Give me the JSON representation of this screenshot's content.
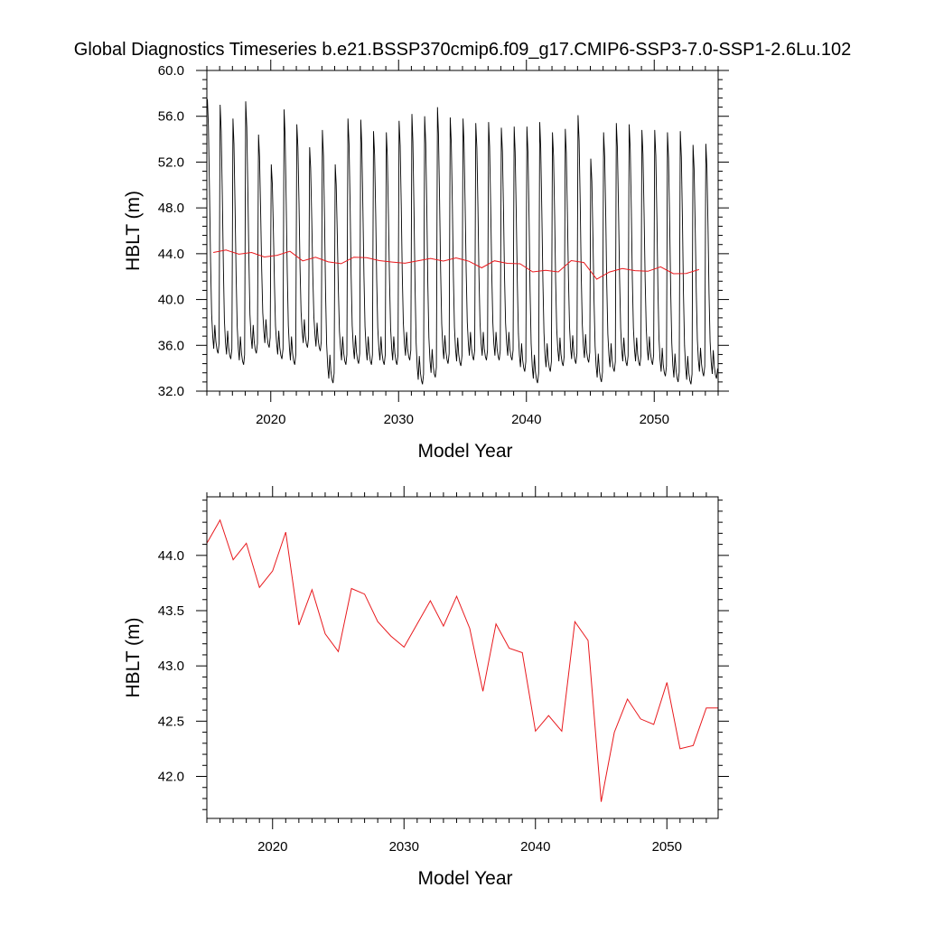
{
  "title": "Global Diagnostics Timeseries b.e21.BSSP370cmip6.f09_g17.CMIP6-SSP3-7.0-SSP1-2.6Lu.102",
  "colors": {
    "monthly": "#000000",
    "annual": "#e8191d",
    "axis": "#000000"
  },
  "chart_data": [
    {
      "type": "line",
      "xlabel": "Model Year",
      "ylabel": "HBLT (m)",
      "xlim": [
        2015,
        2055
      ],
      "ylim": [
        32,
        60
      ],
      "x_ticks": [
        2020,
        2030,
        2040,
        2050
      ],
      "x_tick_labels": [
        "2020",
        "2030",
        "2040",
        "2050"
      ],
      "y_ticks": [
        32,
        36,
        40,
        44,
        48,
        52,
        56,
        60
      ],
      "y_tick_labels": [
        "32.0",
        "36.0",
        "40.0",
        "44.0",
        "48.0",
        "52.0",
        "56.0",
        "60.0"
      ],
      "series": [
        {
          "role": "monthly",
          "color": "#000000",
          "x_start": 2015.04,
          "x_step": 0.08333,
          "monthly_shape": [
            0,
            0.15,
            0.25,
            0.85,
            0.4,
            -0.1,
            -1.0,
            0.05,
            -0.55,
            -0.2,
            0,
            0.2
          ],
          "yearly_max": [
            57.5,
            57.0,
            55.8,
            57.3,
            54.4,
            51.8,
            56.6,
            55.3,
            53.3,
            54.8,
            51.8,
            55.8,
            55.7,
            54.7,
            54.6,
            55.6,
            56.2,
            56.0,
            56.8,
            55.9,
            55.8,
            55.4,
            55.5,
            55.0,
            55.1,
            55.1,
            55.5,
            54.6,
            54.9,
            56.1,
            52.3,
            54.6,
            55.4,
            55.3,
            54.8,
            54.8,
            54.6,
            54.7,
            53.5,
            53.6
          ],
          "yearly_min": [
            36.5,
            36.0,
            35.5,
            36.5,
            37.0,
            36.0,
            35.5,
            37.0,
            36.7,
            33.9,
            35.5,
            35.6,
            35.5,
            35.5,
            35.5,
            35.9,
            33.8,
            34.4,
            35.6,
            35.4,
            35.9,
            35.9,
            35.9,
            35.9,
            34.9,
            33.9,
            34.9,
            35.4,
            35.6,
            35.7,
            34.0,
            34.9,
            35.4,
            35.4,
            35.5,
            34.5,
            34.0,
            33.8,
            34.5,
            34.3
          ]
        },
        {
          "role": "annual",
          "color": "#e8191d",
          "x": [
            2015.5,
            2016.5,
            2017.5,
            2018.5,
            2019.5,
            2020.5,
            2021.5,
            2022.5,
            2023.5,
            2024.5,
            2025.5,
            2026.5,
            2027.5,
            2028.5,
            2029.5,
            2030.5,
            2031.5,
            2032.5,
            2033.5,
            2034.5,
            2035.5,
            2036.5,
            2037.5,
            2038.5,
            2039.5,
            2040.5,
            2041.5,
            2042.5,
            2043.5,
            2044.5,
            2045.5,
            2046.5,
            2047.5,
            2048.5,
            2049.5,
            2050.5,
            2051.5,
            2052.5,
            2053.5
          ],
          "y": [
            44.11,
            44.32,
            43.96,
            44.11,
            43.71,
            43.86,
            44.21,
            43.37,
            43.69,
            43.29,
            43.13,
            43.7,
            43.65,
            43.4,
            43.27,
            43.17,
            43.38,
            43.59,
            43.36,
            43.63,
            43.34,
            42.77,
            43.38,
            43.16,
            43.12,
            42.41,
            42.55,
            42.41,
            43.4,
            43.23,
            41.77,
            42.4,
            42.7,
            42.52,
            42.47,
            42.85,
            42.25,
            42.28,
            42.62
          ]
        }
      ]
    },
    {
      "type": "line",
      "xlabel": "Model Year",
      "ylabel": "HBLT (m)",
      "xlim": [
        2015,
        2053.9
      ],
      "ylim": [
        41.62,
        44.53
      ],
      "x_ticks": [
        2020,
        2030,
        2040,
        2050
      ],
      "x_tick_labels": [
        "2020",
        "2030",
        "2040",
        "2050"
      ],
      "y_ticks": [
        42.0,
        42.5,
        43.0,
        43.5,
        44.0
      ],
      "y_tick_labels": [
        "42.0",
        "42.5",
        "43.0",
        "43.5",
        "44.0"
      ],
      "series": [
        {
          "role": "annual",
          "color": "#e8191d",
          "x": [
            2015.0,
            2016.0,
            2017.0,
            2018.0,
            2019.0,
            2020.0,
            2021.0,
            2022.0,
            2023.0,
            2024.0,
            2025.0,
            2026.0,
            2027.0,
            2028.0,
            2029.0,
            2030.0,
            2031.0,
            2032.0,
            2033.0,
            2034.0,
            2035.0,
            2036.0,
            2037.0,
            2038.0,
            2039.0,
            2040.0,
            2041.0,
            2042.0,
            2043.0,
            2044.0,
            2045.0,
            2046.0,
            2047.0,
            2048.0,
            2049.0,
            2050.0,
            2051.0,
            2052.0,
            2053.0,
            2053.9
          ],
          "y": [
            44.11,
            44.32,
            43.96,
            44.11,
            43.71,
            43.86,
            44.21,
            43.37,
            43.69,
            43.29,
            43.13,
            43.7,
            43.65,
            43.4,
            43.27,
            43.17,
            43.38,
            43.59,
            43.36,
            43.63,
            43.34,
            42.77,
            43.38,
            43.16,
            43.12,
            42.41,
            42.55,
            42.41,
            43.4,
            43.23,
            41.77,
            42.4,
            42.7,
            42.52,
            42.47,
            42.85,
            42.25,
            42.28,
            42.62,
            42.62
          ]
        }
      ]
    }
  ]
}
